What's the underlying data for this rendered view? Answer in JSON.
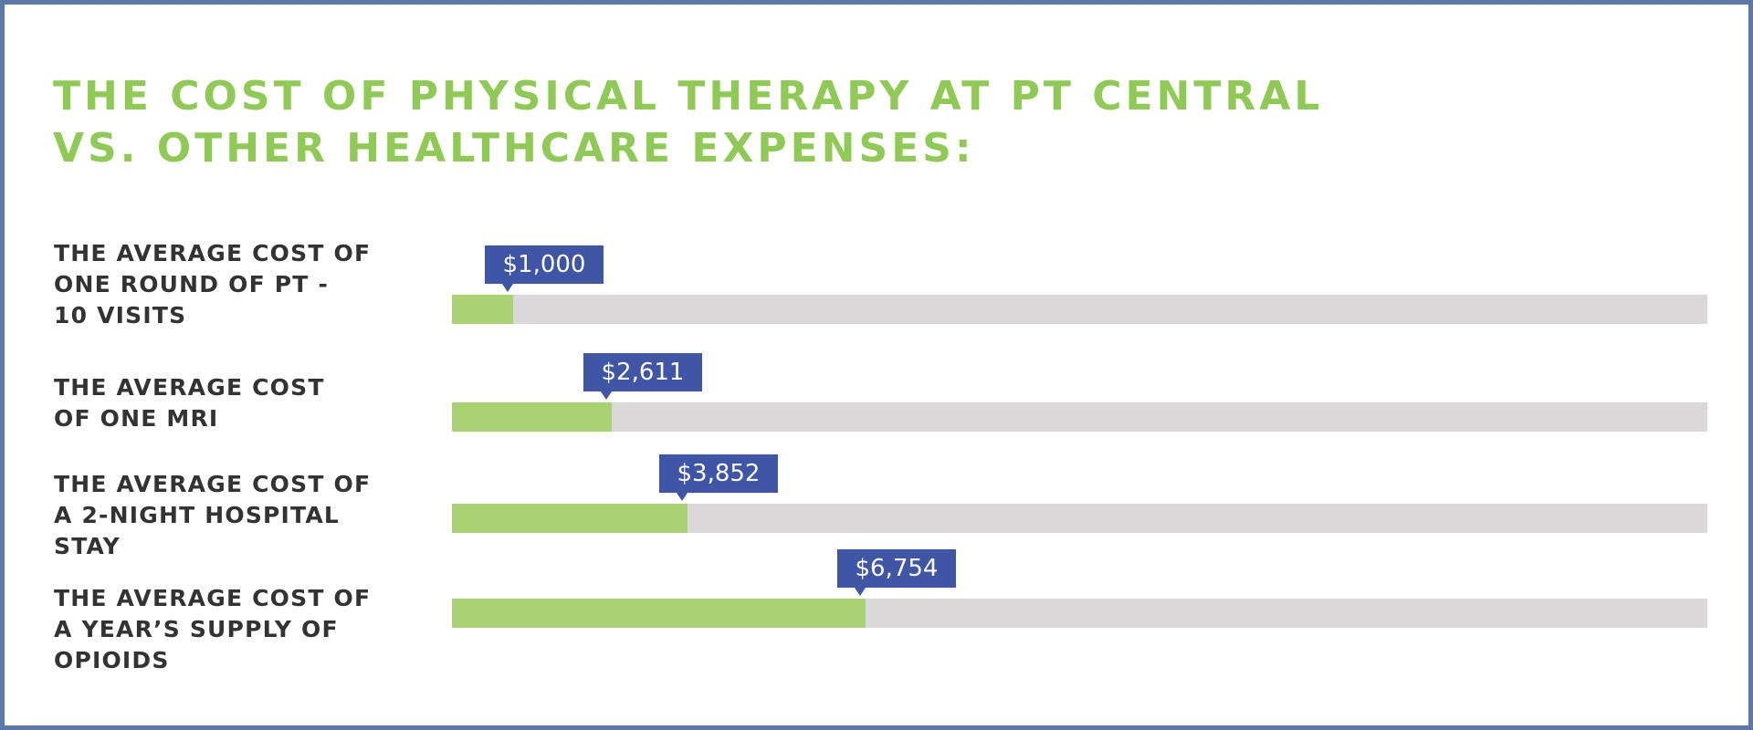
{
  "header": {
    "title_line1": "THE COST OF PHYSICAL THERAPY AT PT CENTRAL",
    "title_line2": "VS. OTHER HEALTHCARE EXPENSES:"
  },
  "colors": {
    "title": "#8fca55",
    "bar_fill": "#a9d273",
    "bar_track": "#dad8d9",
    "callout": "#3f55a6",
    "border": "#5b78a8",
    "label_text": "#333333"
  },
  "chart_data": {
    "type": "bar",
    "orientation": "horizontal",
    "categories": [
      [
        "THE AVERAGE COST OF",
        "ONE ROUND OF PT -",
        "10 VISITS"
      ],
      [
        "THE AVERAGE COST",
        "OF ONE MRI"
      ],
      [
        "THE AVERAGE COST OF",
        "A 2-NIGHT HOSPITAL",
        "STAY"
      ],
      [
        "THE AVERAGE COST OF",
        "A YEAR’S SUPPLY OF",
        "OPIOIDS"
      ]
    ],
    "values": [
      1000,
      2611,
      3852,
      6754
    ],
    "value_labels": [
      "$1,000",
      "$2,611",
      "$3,852",
      "$6,754"
    ],
    "xlim": [
      0,
      20500
    ],
    "grid": false,
    "legend": "none"
  }
}
